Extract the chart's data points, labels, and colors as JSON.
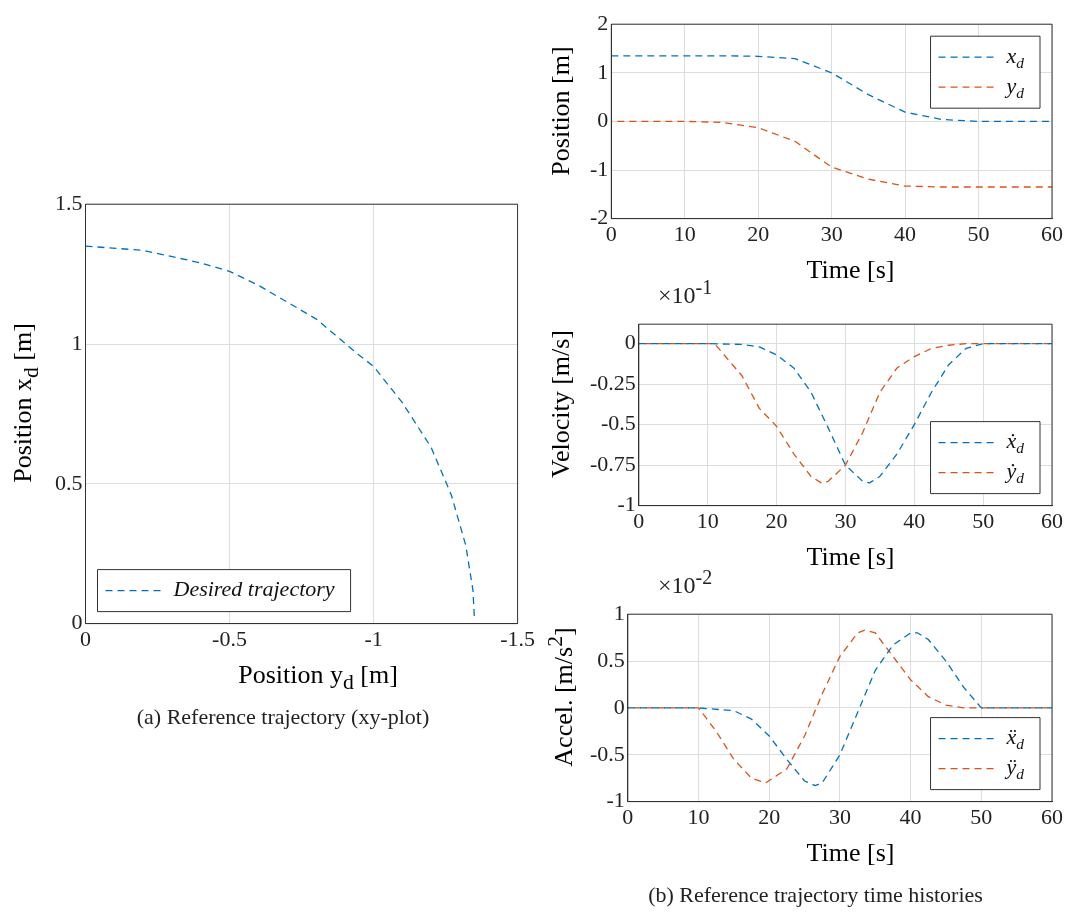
{
  "chart_data": [
    {
      "type": "line",
      "xlabel": "Position y$_{d}$ [m]",
      "ylabel": "Position x$_{d}$ [m]",
      "xlim": [
        0,
        -1.5
      ],
      "xticks": [
        0,
        -0.5,
        -1,
        -1.5
      ],
      "ylim": [
        0,
        1.5
      ],
      "yticks": [
        0,
        0.5,
        1,
        1.5
      ],
      "grid": true,
      "legend": "bottom left",
      "line_style": "dashed",
      "marker": "none",
      "annotations": [
        "(a) Reference trajectory (xy-plot)"
      ],
      "series": [
        {
          "name": "Desired trajectory",
          "color": "#0072bd",
          "x": [
            0,
            -0.2,
            -0.4,
            -0.5,
            -0.6,
            -0.8,
            -0.95,
            -1.0,
            -1.1,
            -1.2,
            -1.27,
            -1.32,
            -1.345,
            -1.35
          ],
          "values": [
            1.35,
            1.335,
            1.29,
            1.26,
            1.21,
            1.09,
            0.96,
            0.92,
            0.79,
            0.63,
            0.46,
            0.28,
            0.12,
            0.02
          ]
        }
      ]
    },
    {
      "type": "line",
      "xlabel": "Time [s]",
      "ylabel": "Position [m]",
      "xlim": [
        0,
        60
      ],
      "xticks": [
        0,
        10,
        20,
        30,
        40,
        50,
        60
      ],
      "ylim": [
        -2,
        2
      ],
      "yticks": [
        -2,
        -1,
        0,
        1,
        2
      ],
      "grid": true,
      "legend": "top right",
      "line_style": "dashed",
      "marker": "none",
      "x": [
        0,
        5,
        10,
        15,
        20,
        25,
        30,
        35,
        40,
        45,
        50,
        55,
        60
      ],
      "series": [
        {
          "name": "x$_{d}$",
          "color": "#0072bd",
          "values": [
            1.35,
            1.35,
            1.35,
            1.35,
            1.34,
            1.29,
            1.0,
            0.55,
            0.19,
            0.04,
            0,
            0,
            0
          ]
        },
        {
          "name": "y$_{d}$",
          "color": "#d95319",
          "values": [
            0,
            0,
            0,
            -0.02,
            -0.13,
            -0.41,
            -0.94,
            -1.19,
            -1.33,
            -1.35,
            -1.35,
            -1.35,
            -1.35
          ]
        }
      ]
    },
    {
      "type": "line",
      "xlabel": "Time [s]",
      "ylabel": "Velocity [m/s]",
      "xlim": [
        0,
        60
      ],
      "xticks": [
        0,
        10,
        20,
        30,
        40,
        50,
        60
      ],
      "ylim": [
        -1,
        0.12
      ],
      "yticks": [
        -1,
        -0.75,
        -0.5,
        -0.25,
        0
      ],
      "grid": true,
      "legend": "bottom right",
      "line_style": "dashed",
      "marker": "none",
      "annotations": [
        "×10$^{-1}$"
      ],
      "series": [
        {
          "name": "ẋ$_{d}$",
          "color": "#0072bd",
          "x": [
            0,
            10,
            15,
            17.5,
            20,
            22.5,
            25,
            27.5,
            30,
            32.5,
            33.5,
            35,
            37.5,
            40,
            42.5,
            45,
            47.5,
            50,
            55,
            60
          ],
          "values": [
            0,
            0,
            -0.005,
            -0.02,
            -0.07,
            -0.15,
            -0.3,
            -0.52,
            -0.75,
            -0.85,
            -0.86,
            -0.82,
            -0.68,
            -0.5,
            -0.3,
            -0.13,
            -0.03,
            0,
            0,
            0
          ]
        },
        {
          "name": "ẏ$_{d}$",
          "color": "#d95319",
          "x": [
            0,
            5,
            11,
            15,
            17.5,
            20,
            22.5,
            25,
            26.5,
            27.5,
            30,
            32.5,
            35,
            37.5,
            40,
            42.5,
            45,
            47.5,
            50,
            55,
            60
          ],
          "values": [
            0,
            0,
            0,
            -0.2,
            -0.4,
            -0.51,
            -0.68,
            -0.82,
            -0.86,
            -0.85,
            -0.75,
            -0.55,
            -0.3,
            -0.15,
            -0.08,
            -0.03,
            -0.01,
            0,
            0,
            0,
            0
          ]
        }
      ]
    },
    {
      "type": "line",
      "xlabel": "Time [s]",
      "ylabel": "Accel. [m/s$^{2}$]",
      "xlim": [
        0,
        60
      ],
      "xticks": [
        0,
        10,
        20,
        30,
        40,
        50,
        60
      ],
      "ylim": [
        -1,
        1
      ],
      "yticks": [
        -1,
        -0.5,
        0,
        0.5,
        1
      ],
      "grid": true,
      "legend": "bottom right",
      "line_style": "dashed",
      "marker": "none",
      "annotations": [
        "×10$^{-2}$",
        "(b) Reference trajectory time histories"
      ],
      "series": [
        {
          "name": "ẍ$_{d}$",
          "color": "#0072bd",
          "x": [
            0,
            10,
            15,
            17.5,
            20,
            22.5,
            25,
            26.5,
            27.5,
            30,
            32.5,
            35,
            37.5,
            40,
            41,
            42.5,
            45,
            47.5,
            50,
            55,
            60
          ],
          "values": [
            0,
            0,
            -0.03,
            -0.12,
            -0.3,
            -0.55,
            -0.78,
            -0.83,
            -0.8,
            -0.5,
            -0.05,
            0.4,
            0.67,
            0.8,
            0.8,
            0.73,
            0.5,
            0.22,
            0,
            0,
            0
          ]
        },
        {
          "name": "ÿ$_{d}$",
          "color": "#d95319",
          "x": [
            0,
            5,
            10,
            12.5,
            15,
            17.5,
            19.5,
            22.5,
            25,
            27.5,
            30,
            32.5,
            33.5,
            35,
            37.5,
            40,
            42.5,
            45,
            47.5,
            50,
            55,
            60
          ],
          "values": [
            0,
            0,
            0,
            -0.25,
            -0.55,
            -0.75,
            -0.8,
            -0.65,
            -0.3,
            0.15,
            0.55,
            0.8,
            0.83,
            0.8,
            0.55,
            0.3,
            0.12,
            0.03,
            0,
            0,
            0,
            0
          ]
        }
      ]
    }
  ]
}
